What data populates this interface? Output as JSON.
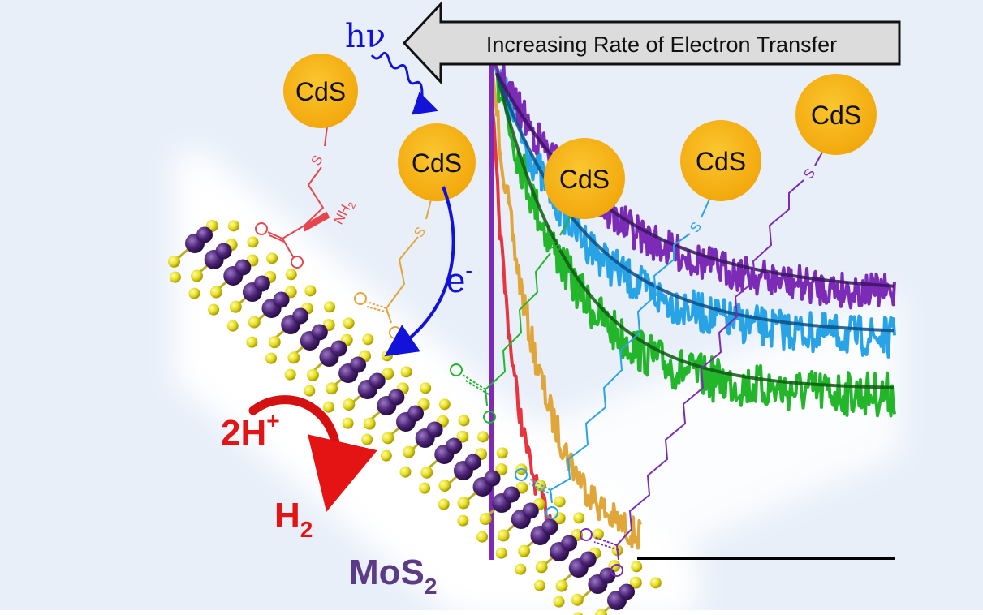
{
  "banner": {
    "text": "Increasing Rate of Electron Transfer"
  },
  "photon": {
    "symbol": "hν"
  },
  "electron": {
    "base": "e",
    "sup": "-"
  },
  "qd_label": "CdS",
  "protons": {
    "base": "2H",
    "sup": "+"
  },
  "hydrogen": {
    "base": "H",
    "sub": "2"
  },
  "substrate": {
    "base": "MoS",
    "sub": "2"
  },
  "atoms": {
    "sulfur": "S",
    "amine": "NH",
    "amine_sub": "2"
  },
  "colors": {
    "background": "#e8eff9",
    "glow": "#ffffff",
    "cds": "#f7b314",
    "cysteine": "#e5474c",
    "mpa": "#e0a63a",
    "green": "#23b52a",
    "blue": "#27a3e6",
    "purple": "#7b2bb5",
    "red_trace": "#e8343f",
    "orange_trace": "#e0a63a",
    "mo_atom": "#4a2273",
    "s_atom": "#e9e324",
    "photon": "#1212d8",
    "reaction": "#e41414"
  }
}
